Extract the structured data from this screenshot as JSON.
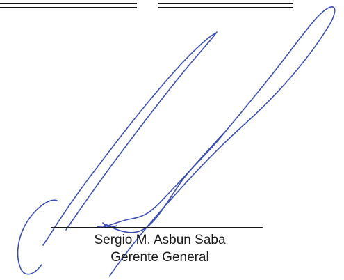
{
  "signature_block": {
    "name": "Sergio M. Asbun Saba",
    "title": "Gerente General"
  },
  "colors": {
    "ink": "#3b4fb3",
    "text": "#1a1a1a",
    "rule": "#111111"
  },
  "icons": {
    "signature": "handwritten-signature"
  }
}
